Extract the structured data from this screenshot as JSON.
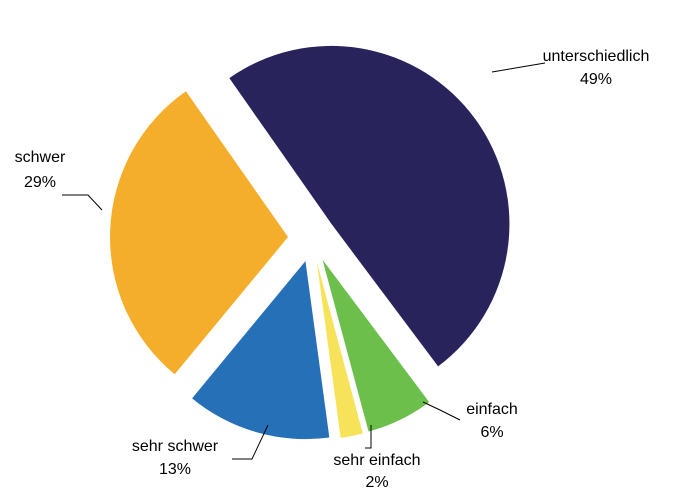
{
  "chart_data": {
    "type": "pie",
    "labels": [
      "unterschiedlich",
      "einfach",
      "sehr einfach",
      "sehr schwer",
      "schwer"
    ],
    "values": [
      49,
      6,
      2,
      13,
      29
    ],
    "value_labels": [
      "49%",
      "6%",
      "2%",
      "13%",
      "29%"
    ],
    "colors": [
      "#29235c",
      "#6cbf4b",
      "#f7e35a",
      "#2670b8",
      "#f5ae2b"
    ]
  }
}
